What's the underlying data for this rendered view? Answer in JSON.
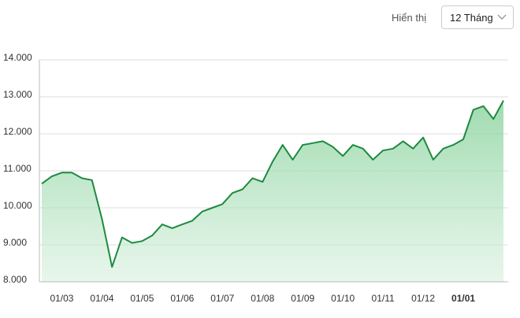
{
  "controls": {
    "label": "Hiển thị",
    "select": "12 Tháng"
  },
  "chart_data": {
    "type": "area",
    "categories": [
      null,
      null,
      "01/03",
      null,
      null,
      null,
      "01/04",
      null,
      null,
      null,
      "01/05",
      null,
      null,
      null,
      "01/06",
      null,
      null,
      null,
      "01/07",
      null,
      null,
      null,
      "01/08",
      null,
      null,
      null,
      "01/09",
      null,
      null,
      null,
      "01/10",
      null,
      null,
      null,
      "01/11",
      null,
      null,
      null,
      "01/12",
      null,
      null,
      null,
      "01/01",
      null,
      null,
      null,
      null
    ],
    "series": [
      {
        "color": "#1e8a3e",
        "values": [
          10650,
          10850,
          10950,
          10950,
          10800,
          10750,
          9700,
          8400,
          9200,
          9050,
          9100,
          9250,
          9550,
          9450,
          9550,
          9650,
          9900,
          10000,
          10100,
          10400,
          10500,
          10800,
          10700,
          11250,
          11700,
          11300,
          11700,
          11750,
          11800,
          11650,
          11400,
          11700,
          11600,
          11300,
          11550,
          11600,
          11800,
          11600,
          11900,
          11300,
          11600,
          11700,
          11850,
          12650,
          12750,
          12400,
          12900
        ]
      }
    ],
    "ylim": [
      8000,
      14000
    ],
    "yticks": [
      {
        "value": 8000,
        "label": "8.000"
      },
      {
        "value": 9000,
        "label": "9.000"
      },
      {
        "value": 10000,
        "label": "10.000"
      },
      {
        "value": 11000,
        "label": "11.000"
      },
      {
        "value": 12000,
        "label": "12.000"
      },
      {
        "value": 13000,
        "label": "13.000"
      },
      {
        "value": 14000,
        "label": "14.000"
      }
    ],
    "grid": true
  }
}
